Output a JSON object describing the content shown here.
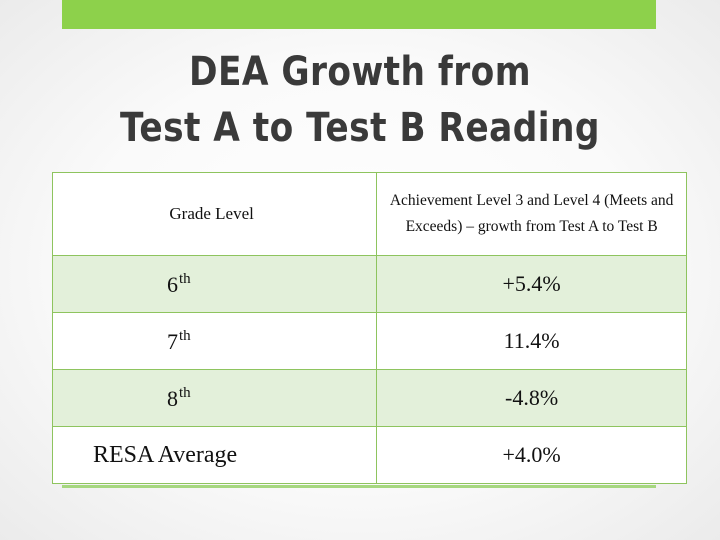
{
  "slide": {
    "title_line1": "DEA Growth from",
    "title_line2": "Test A to Test B Reading",
    "accent_color": "#8dd14b"
  },
  "table": {
    "header": {
      "col1": "Grade Level",
      "col2_line1": "Achievement Level 3 and Level 4 (Meets and",
      "col2_line2": "Exceeds) – growth from Test A to Test B"
    },
    "rows": [
      {
        "grade_num": "6",
        "grade_suffix": "th",
        "value": "+5.4%"
      },
      {
        "grade_num": "7",
        "grade_suffix": "th",
        "value": "11.4%"
      },
      {
        "grade_num": "8",
        "grade_suffix": "th",
        "value": "-4.8%"
      },
      {
        "grade_label": "RESA Average",
        "value": "+4.0%"
      }
    ]
  }
}
